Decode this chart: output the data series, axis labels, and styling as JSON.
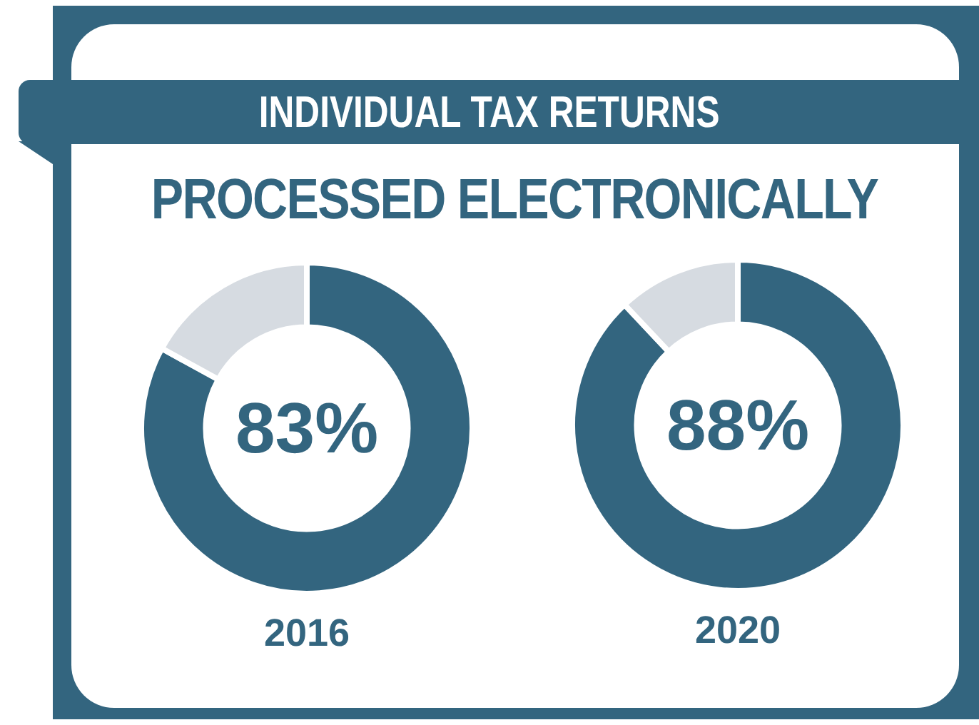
{
  "chart_data": [
    {
      "type": "donut",
      "title": "INDIVIDUAL TAX RETURNS",
      "subtitle": "PROCESSED ELECTRONICALLY",
      "xlabel": "2016",
      "categories": [
        null,
        null
      ],
      "values": [
        83,
        17
      ],
      "colors": [
        "#33657f",
        "#d6dbe1"
      ],
      "annotations": [
        "83%"
      ]
    },
    {
      "type": "donut",
      "xlabel": "2020",
      "categories": [
        null,
        null
      ],
      "values": [
        88,
        12
      ],
      "colors": [
        "#33657f",
        "#d6dbe1"
      ],
      "annotations": [
        "88%"
      ]
    }
  ]
}
